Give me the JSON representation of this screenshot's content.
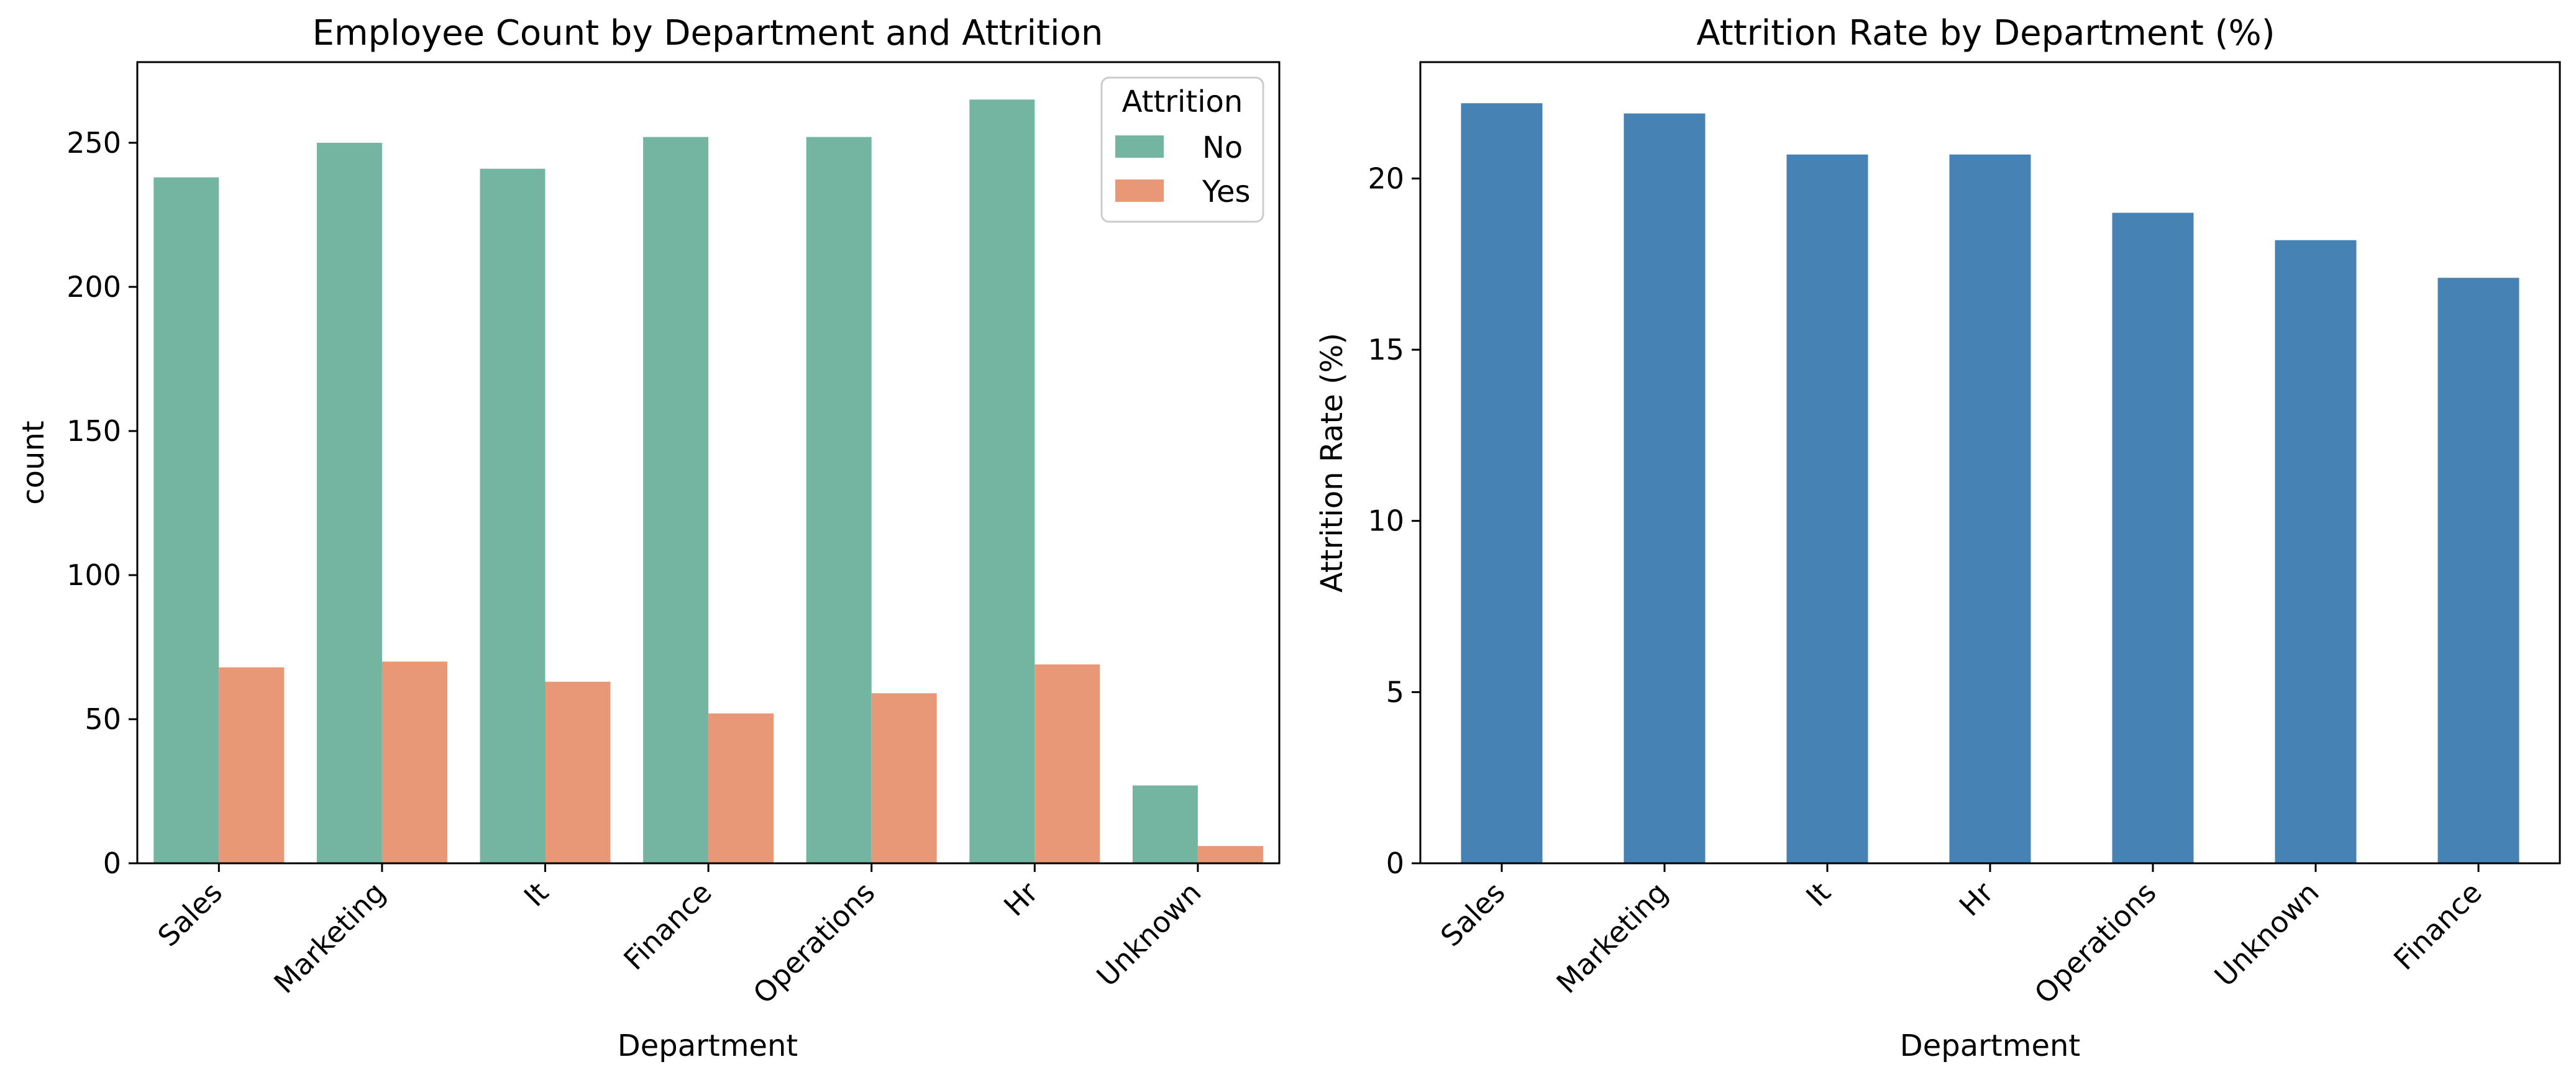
{
  "chart_data": [
    {
      "type": "bar",
      "title": "Employee Count by Department and Attrition",
      "xlabel": "Department",
      "ylabel": "count",
      "ylim": [
        0,
        278
      ],
      "yticks": [
        0,
        50,
        100,
        150,
        200,
        250
      ],
      "categories": [
        "Sales",
        "Marketing",
        "It",
        "Finance",
        "Operations",
        "Hr",
        "Unknown"
      ],
      "legend": {
        "title": "Attrition",
        "placement": "top-right"
      },
      "grid": false,
      "series": [
        {
          "name": "No",
          "color": "#73b5a1",
          "values": [
            238,
            250,
            241,
            252,
            252,
            265,
            27
          ]
        },
        {
          "name": "Yes",
          "color": "#e99877",
          "values": [
            68,
            70,
            63,
            52,
            59,
            69,
            6
          ]
        }
      ]
    },
    {
      "type": "bar",
      "title": "Attrition Rate by Department (%)",
      "xlabel": "Department",
      "ylabel": "Attrition Rate (%)",
      "ylim": [
        0,
        23.4
      ],
      "yticks": [
        0,
        5,
        10,
        15,
        20
      ],
      "categories": [
        "Sales",
        "Marketing",
        "It",
        "Hr",
        "Operations",
        "Unknown",
        "Finance"
      ],
      "grid": false,
      "series": [
        {
          "color": "#4682b4",
          "values": [
            22.2,
            21.9,
            20.7,
            20.7,
            19.0,
            18.2,
            17.1
          ]
        }
      ]
    }
  ]
}
